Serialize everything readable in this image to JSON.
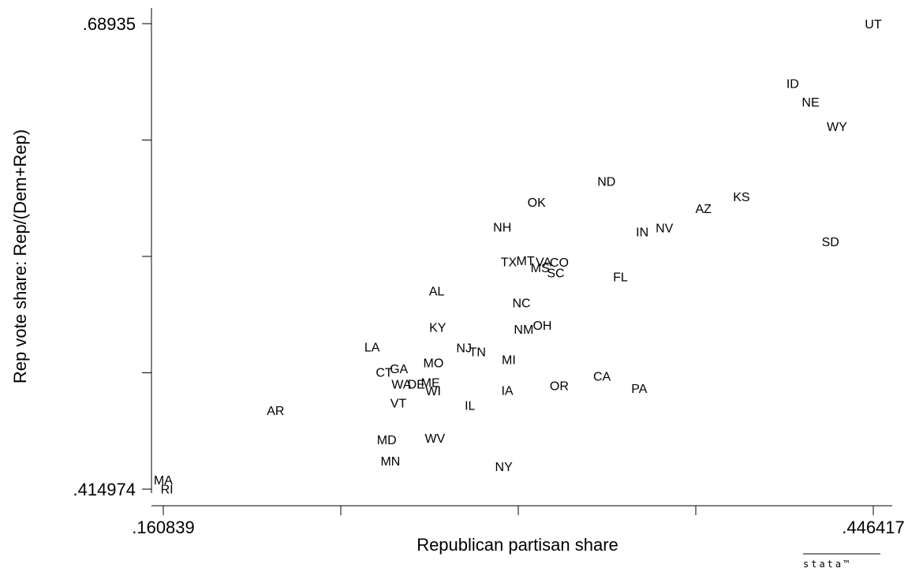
{
  "chart_data": {
    "type": "scatter",
    "title": "",
    "xlabel": "Republican partisan share",
    "ylabel": "Rep vote share: Rep/(Dem+Rep)",
    "xlim": [
      0.160839,
      0.446417
    ],
    "ylim": [
      0.414974,
      0.68935
    ],
    "x_ticks": [
      0.160839,
      0.232234,
      0.303628,
      0.375023,
      0.446417
    ],
    "y_ticks": [
      0.414974,
      0.483568,
      0.552162,
      0.620756,
      0.68935
    ],
    "x_tick_labels": [
      ".160839",
      "",
      "",
      "",
      ".446417"
    ],
    "y_tick_labels": [
      ".414974",
      "",
      "",
      "",
      ".68935"
    ],
    "points": [
      {
        "label": "UT",
        "x": 0.4464,
        "y": 0.6893
      },
      {
        "label": "ID",
        "x": 0.414,
        "y": 0.6543
      },
      {
        "label": "NE",
        "x": 0.4212,
        "y": 0.6433
      },
      {
        "label": "WY",
        "x": 0.4318,
        "y": 0.6289
      },
      {
        "label": "KS",
        "x": 0.3934,
        "y": 0.5874
      },
      {
        "label": "AZ",
        "x": 0.3781,
        "y": 0.5806
      },
      {
        "label": "SD",
        "x": 0.4292,
        "y": 0.561
      },
      {
        "label": "ND",
        "x": 0.3391,
        "y": 0.5966
      },
      {
        "label": "OK",
        "x": 0.311,
        "y": 0.5842
      },
      {
        "label": "NV",
        "x": 0.3624,
        "y": 0.5692
      },
      {
        "label": "IN",
        "x": 0.3535,
        "y": 0.5667
      },
      {
        "label": "NH",
        "x": 0.2972,
        "y": 0.5696
      },
      {
        "label": "TX",
        "x": 0.2998,
        "y": 0.5492
      },
      {
        "label": "MT",
        "x": 0.3065,
        "y": 0.5498
      },
      {
        "label": "VA",
        "x": 0.3138,
        "y": 0.5492
      },
      {
        "label": "CO",
        "x": 0.3201,
        "y": 0.5489
      },
      {
        "label": "MS",
        "x": 0.3124,
        "y": 0.5457
      },
      {
        "label": "SC",
        "x": 0.3187,
        "y": 0.5426
      },
      {
        "label": "FL",
        "x": 0.3447,
        "y": 0.5404
      },
      {
        "label": "AL",
        "x": 0.2708,
        "y": 0.5319
      },
      {
        "label": "NC",
        "x": 0.3049,
        "y": 0.525
      },
      {
        "label": "OH",
        "x": 0.3133,
        "y": 0.5118
      },
      {
        "label": "NM",
        "x": 0.3058,
        "y": 0.5093
      },
      {
        "label": "KY",
        "x": 0.2712,
        "y": 0.5106
      },
      {
        "label": "NJ",
        "x": 0.2818,
        "y": 0.4984
      },
      {
        "label": "TN",
        "x": 0.2872,
        "y": 0.4962
      },
      {
        "label": "MI",
        "x": 0.2998,
        "y": 0.4915
      },
      {
        "label": "LA",
        "x": 0.2448,
        "y": 0.499
      },
      {
        "label": "MO",
        "x": 0.2695,
        "y": 0.4896
      },
      {
        "label": "GA",
        "x": 0.2556,
        "y": 0.4862
      },
      {
        "label": "CT",
        "x": 0.2497,
        "y": 0.4841
      },
      {
        "label": "ME",
        "x": 0.2683,
        "y": 0.478
      },
      {
        "label": "DE",
        "x": 0.2626,
        "y": 0.4771
      },
      {
        "label": "WA",
        "x": 0.2566,
        "y": 0.4771
      },
      {
        "label": "WI",
        "x": 0.2694,
        "y": 0.4731
      },
      {
        "label": "VT",
        "x": 0.2554,
        "y": 0.4658
      },
      {
        "label": "IL",
        "x": 0.2842,
        "y": 0.4646
      },
      {
        "label": "IA",
        "x": 0.2992,
        "y": 0.4734
      },
      {
        "label": "OR",
        "x": 0.3201,
        "y": 0.4762
      },
      {
        "label": "CA",
        "x": 0.3373,
        "y": 0.4818
      },
      {
        "label": "PA",
        "x": 0.3523,
        "y": 0.4746
      },
      {
        "label": "AR",
        "x": 0.206,
        "y": 0.4615
      },
      {
        "label": "MD",
        "x": 0.2507,
        "y": 0.4442
      },
      {
        "label": "WV",
        "x": 0.2701,
        "y": 0.4452
      },
      {
        "label": "MN",
        "x": 0.2522,
        "y": 0.4318
      },
      {
        "label": "NY",
        "x": 0.2978,
        "y": 0.4284
      },
      {
        "label": "MA",
        "x": 0.1608,
        "y": 0.4206
      },
      {
        "label": "RI",
        "x": 0.1623,
        "y": 0.4153
      }
    ]
  },
  "logo": "stata™"
}
